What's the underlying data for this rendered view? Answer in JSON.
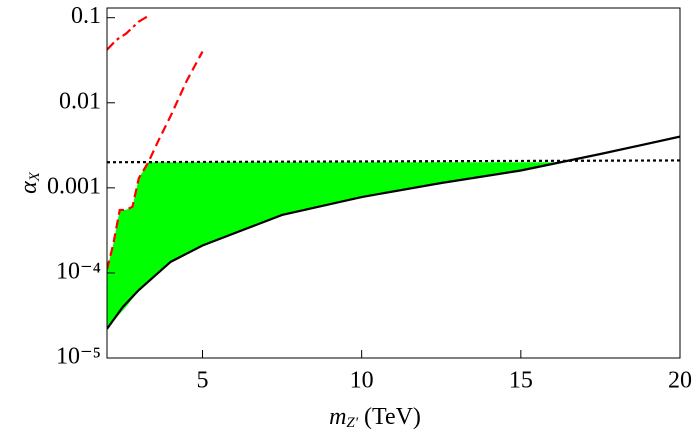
{
  "chart_data": {
    "type": "area-lines",
    "x_label": {
      "symbol": "m",
      "subscript": "Z'",
      "unit": "(TeV)"
    },
    "y_label": {
      "symbol": "α",
      "subscript": "X"
    },
    "log_y": true,
    "xlim": [
      2,
      20
    ],
    "xticks": [
      5,
      10,
      15,
      20
    ],
    "ylim": [
      1e-05,
      0.13
    ],
    "yticks": [
      {
        "value": 1e-05,
        "label": "10⁻⁵"
      },
      {
        "value": 0.0001,
        "label": "10⁻⁴"
      },
      0.001,
      0.01,
      0.1
    ],
    "region": {
      "color": "#00ff00",
      "x": [
        2,
        2.2,
        2.4,
        2.6,
        2.8,
        3,
        3.3,
        4,
        5,
        7.5,
        10,
        12.5,
        15,
        16.4
      ],
      "high": [
        0.00011,
        0.00022,
        0.00055,
        0.00055,
        0.0006,
        0.0013,
        0.002,
        0.002,
        0.002,
        0.002,
        0.002,
        0.002,
        0.002,
        0.002
      ],
      "low": [
        2.2e-05,
        2.7e-05,
        3.3e-05,
        4e-05,
        5e-05,
        6.3e-05,
        8e-05,
        0.000135,
        0.00021,
        0.00048,
        0.00078,
        0.00114,
        0.0016,
        0.002
      ]
    },
    "series": [
      {
        "style": "solid",
        "color": "#000000",
        "x": [
          2,
          2.5,
          3,
          4,
          5,
          7.5,
          10,
          12.5,
          15,
          17.5,
          20
        ],
        "values": [
          2.2e-05,
          4e-05,
          6.3e-05,
          0.000135,
          0.00021,
          0.00048,
          0.00078,
          0.00114,
          0.0016,
          0.0025,
          0.004
        ]
      },
      {
        "style": "dotted",
        "color": "#000000",
        "x": [
          2,
          20
        ],
        "values": [
          0.002,
          0.0021
        ]
      },
      {
        "style": "dashdot",
        "color": "#ff0000",
        "x": [
          2,
          2.3,
          2.6,
          3,
          3.3
        ],
        "values": [
          0.042,
          0.055,
          0.065,
          0.09,
          0.105
        ]
      },
      {
        "style": "dashed",
        "color": "#ff0000",
        "x": [
          2,
          2.2,
          2.4,
          2.6,
          2.8,
          3,
          3.3,
          3.6,
          4,
          4.5,
          5
        ],
        "values": [
          0.00011,
          0.00022,
          0.00055,
          0.00055,
          0.0006,
          0.0013,
          0.002,
          0.0035,
          0.007,
          0.018,
          0.04
        ]
      }
    ]
  }
}
